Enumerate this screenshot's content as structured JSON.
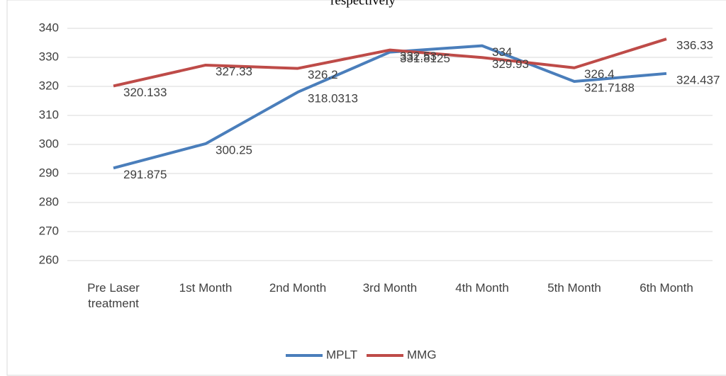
{
  "chart_data": {
    "type": "line",
    "title": "respectively",
    "categories": [
      "Pre Laser treatment",
      "1st Month",
      "2nd Month",
      "3rd Month",
      "4th Month",
      "5th Month",
      "6th Month"
    ],
    "series": [
      {
        "name": "MPLT",
        "color": "#4a7ebb",
        "values": [
          291.875,
          300.25,
          318.0313,
          331.8125,
          334,
          321.7188,
          324.437
        ]
      },
      {
        "name": "MMG",
        "color": "#be4b48",
        "values": [
          320.133,
          327.33,
          326.2,
          332.53,
          329.93,
          326.4,
          336.33
        ]
      }
    ],
    "ylim": [
      260,
      340
    ],
    "yticks": [
      260,
      270,
      280,
      290,
      300,
      310,
      320,
      330,
      340
    ],
    "grid": true,
    "legend": "bottom"
  }
}
